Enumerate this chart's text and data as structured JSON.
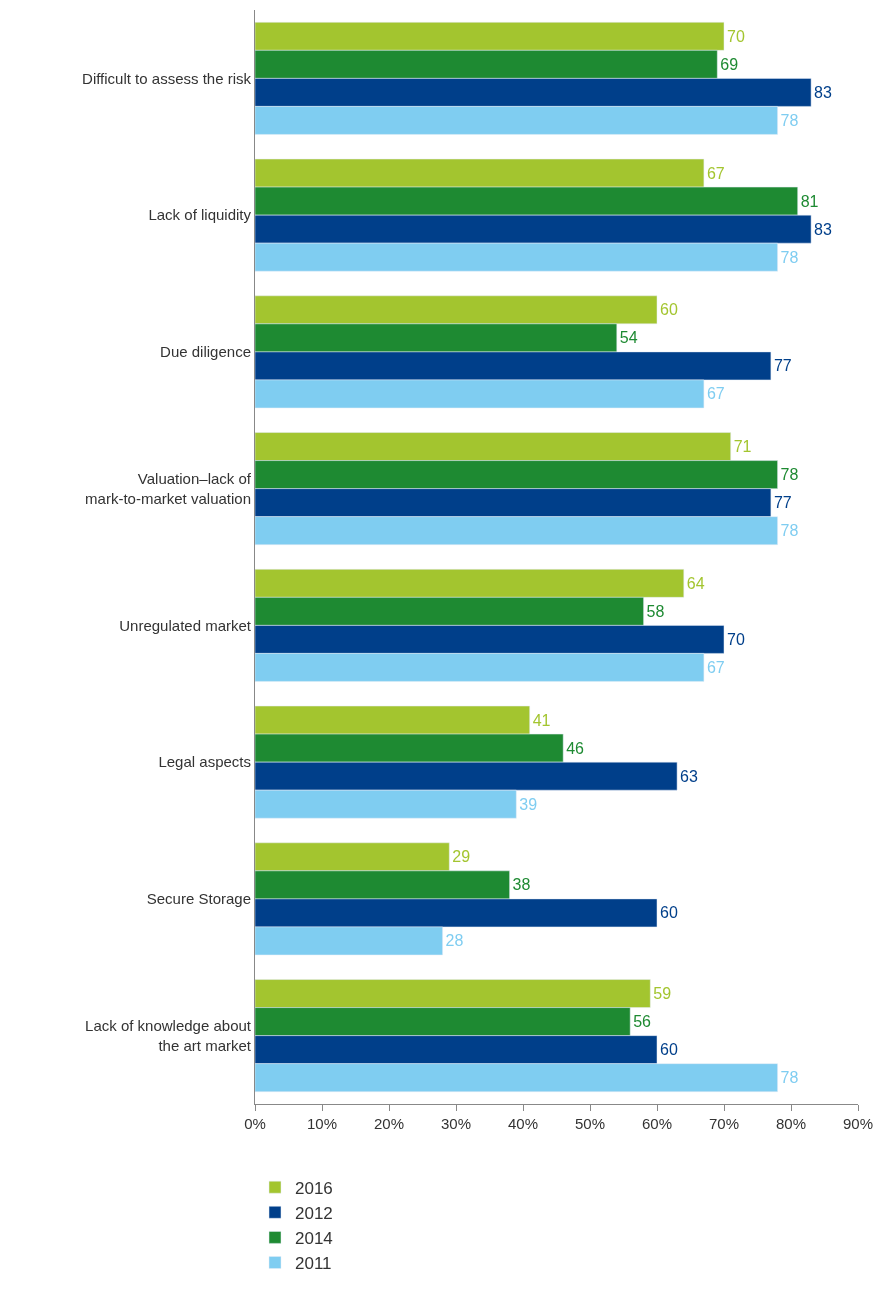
{
  "chart_data": {
    "type": "bar",
    "orientation": "horizontal",
    "categories": [
      "Difficult to assess the risk",
      "Lack of liquidity",
      "Due diligence",
      "Valuation–lack of\nmark-to-market valuation",
      "Unregulated market",
      "Legal aspects",
      "Secure Storage",
      "Lack of knowledge about\nthe art market"
    ],
    "series": [
      {
        "name": "2016",
        "color": "#a3c52f",
        "values": [
          70,
          67,
          60,
          71,
          64,
          41,
          29,
          59
        ]
      },
      {
        "name": "2014",
        "color": "#1e8a32",
        "values": [
          69,
          81,
          54,
          78,
          58,
          46,
          38,
          56
        ]
      },
      {
        "name": "2012",
        "color": "#003f8a",
        "values": [
          83,
          83,
          77,
          77,
          70,
          63,
          60,
          60
        ]
      },
      {
        "name": "2011",
        "color": "#7fcdf1",
        "values": [
          78,
          78,
          67,
          78,
          67,
          39,
          28,
          78
        ]
      }
    ],
    "xlim": [
      0,
      90
    ],
    "xticks": [
      {
        "value": 0,
        "label": "0%"
      },
      {
        "value": 10,
        "label": "10%"
      },
      {
        "value": 20,
        "label": "20%"
      },
      {
        "value": 30,
        "label": "30%"
      },
      {
        "value": 40,
        "label": "40%"
      },
      {
        "value": 50,
        "label": "50%"
      },
      {
        "value": 60,
        "label": "60%"
      },
      {
        "value": 70,
        "label": "70%"
      },
      {
        "value": 80,
        "label": "80%"
      },
      {
        "value": 90,
        "label": "90%"
      }
    ],
    "data_labels": true,
    "legend": "bottom left"
  }
}
